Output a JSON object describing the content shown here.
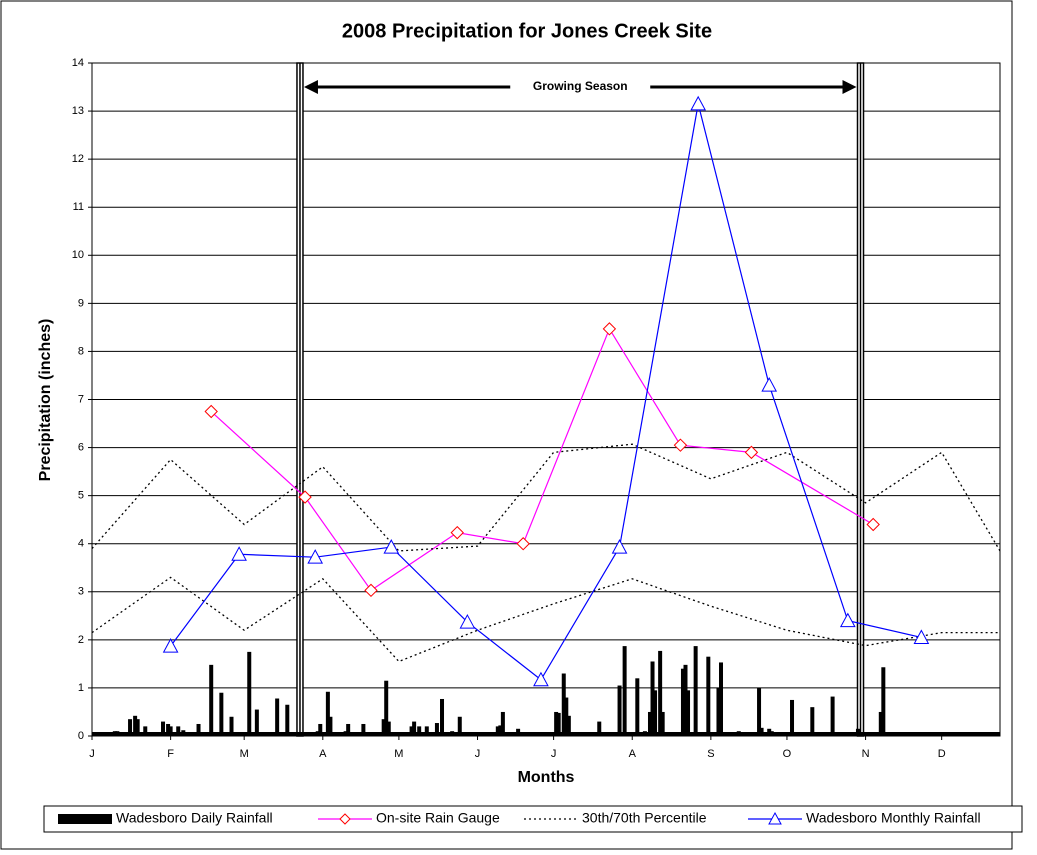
{
  "chart_data": {
    "type": "line",
    "title": "2008 Precipitation for Jones Creek Site",
    "x_label": "Months",
    "y_label": "Precipitation (inches)",
    "xlim": [
      0,
      358
    ],
    "xticks": [
      {
        "value": 0,
        "label": "J"
      },
      {
        "value": 31,
        "label": "F"
      },
      {
        "value": 60,
        "label": "M"
      },
      {
        "value": 91,
        "label": "A"
      },
      {
        "value": 121,
        "label": "M"
      },
      {
        "value": 152,
        "label": "J"
      },
      {
        "value": 182,
        "label": "J"
      },
      {
        "value": 213,
        "label": "A"
      },
      {
        "value": 244,
        "label": "S"
      },
      {
        "value": 274,
        "label": "O"
      },
      {
        "value": 305,
        "label": "N"
      },
      {
        "value": 335,
        "label": "D"
      }
    ],
    "ylim": [
      0,
      14
    ],
    "yticks": [
      0,
      1,
      2,
      3,
      4,
      5,
      6,
      7,
      8,
      9,
      10,
      11,
      12,
      13,
      14
    ],
    "grid": true,
    "legend": "bottom",
    "growing_season": {
      "label": "Growing Season",
      "start": 82,
      "end": 303
    },
    "series": [
      {
        "name": "Wadesboro Daily Rainfall",
        "type": "bar",
        "color": "#000000",
        "x": [
          9,
          10,
          15,
          17,
          18,
          21,
          28,
          30,
          31,
          34,
          36,
          42,
          47,
          51,
          55,
          62,
          65,
          73,
          77,
          87,
          89,
          90,
          93,
          94,
          100,
          101,
          107,
          115,
          116,
          117,
          121,
          126,
          127,
          129,
          132,
          136,
          138,
          142,
          145,
          149,
          160,
          161,
          162,
          168,
          170,
          183,
          184,
          186,
          187,
          188,
          196,
          200,
          205,
          208,
          210,
          215,
          218,
          220,
          221,
          222,
          224,
          225,
          233,
          234,
          235,
          238,
          243,
          247,
          248,
          255,
          263,
          264,
          267,
          268,
          276,
          284,
          292,
          302,
          311,
          312
        ],
        "values": [
          0.1,
          0.1,
          0.35,
          0.42,
          0.35,
          0.2,
          0.3,
          0.25,
          0.2,
          0.2,
          0.12,
          0.25,
          1.48,
          0.9,
          0.4,
          1.75,
          0.55,
          0.78,
          0.65,
          0.05,
          0.1,
          0.25,
          0.92,
          0.4,
          0.1,
          0.25,
          0.25,
          0.35,
          1.15,
          0.3,
          0.05,
          0.2,
          0.3,
          0.2,
          0.2,
          0.27,
          0.77,
          0.1,
          0.4,
          0.05,
          0.2,
          0.22,
          0.5,
          0.15,
          0.08,
          0.5,
          0.48,
          1.3,
          0.8,
          0.42,
          0.08,
          0.3,
          0.05,
          1.05,
          1.87,
          1.2,
          0.1,
          0.5,
          1.55,
          0.95,
          1.77,
          0.5,
          1.4,
          1.48,
          0.95,
          1.87,
          1.65,
          1.0,
          1.53,
          0.1,
          1.0,
          0.17,
          0.15,
          0.1,
          0.75,
          0.6,
          0.82,
          0.15,
          0.5,
          1.43
        ]
      },
      {
        "name": "On-site Rain Gauge",
        "type": "line",
        "color": "#ff00ff",
        "marker": "diamond",
        "marker_color": "#ff0000",
        "x": [
          47,
          84,
          110,
          144,
          170,
          204,
          232,
          260,
          308
        ],
        "values": [
          6.75,
          4.97,
          3.03,
          4.23,
          4.0,
          8.47,
          6.05,
          5.9,
          4.4
        ]
      },
      {
        "name": "30th/70th Percentile",
        "type": "line",
        "color": "#000000",
        "dash": true,
        "x": [
          0,
          31,
          60,
          91,
          121,
          152,
          182,
          213,
          244,
          274,
          305,
          335,
          358
        ],
        "values": [
          3.9,
          5.75,
          4.4,
          5.6,
          3.85,
          3.95,
          5.9,
          6.07,
          5.35,
          5.9,
          4.85,
          5.9,
          3.85
        ]
      },
      {
        "type": "line",
        "color": "#000000",
        "dash": true,
        "x": [
          0,
          31,
          60,
          91,
          121,
          152,
          182,
          213,
          244,
          274,
          305,
          335,
          358
        ],
        "values": [
          2.15,
          3.3,
          2.2,
          3.27,
          1.55,
          2.2,
          2.75,
          3.27,
          2.7,
          2.2,
          1.88,
          2.15,
          2.15
        ]
      },
      {
        "name": "Wadesboro Monthly Rainfall",
        "type": "line",
        "color": "#0000ff",
        "marker": "triangle",
        "marker_color": "#0000ff",
        "x": [
          31,
          58,
          88,
          118,
          148,
          177,
          208,
          239,
          267,
          298,
          327
        ],
        "values": [
          1.87,
          3.78,
          3.72,
          3.93,
          2.37,
          1.17,
          3.93,
          13.15,
          7.3,
          2.4,
          2.05
        ]
      }
    ]
  }
}
